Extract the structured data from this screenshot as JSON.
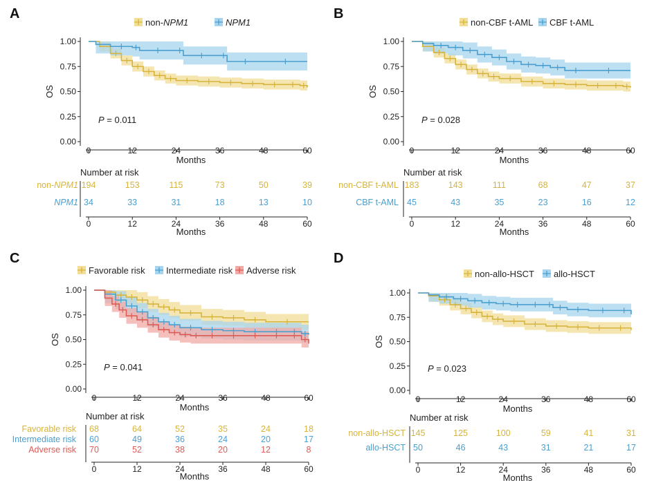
{
  "colors": {
    "gold": "#d6b43c",
    "blue": "#4a9fcf",
    "red": "#dd5b55",
    "gold_band": "#f2de97",
    "blue_band": "#a7d4ee",
    "red_band": "#f2aaa6"
  },
  "chart_data": [
    {
      "panel": "A",
      "type": "line",
      "ylabel": "OS",
      "xlabel": "Months",
      "ylim": [
        0,
        1
      ],
      "xlim": [
        0,
        60
      ],
      "yticks": [
        "0.00",
        "0.25",
        "0.50",
        "0.75",
        "1.00"
      ],
      "xticks": [
        "0",
        "12",
        "24",
        "36",
        "48",
        "60"
      ],
      "pvalue": "= 0.011",
      "pvalue_label": "P",
      "risk_title": "Number at risk",
      "series": [
        {
          "name": "non-NPM1",
          "italic_part": "NPM1",
          "prefix": "non-",
          "color": "gold",
          "x": [
            0,
            3,
            6,
            9,
            12,
            15,
            18,
            21,
            24,
            30,
            36,
            42,
            48,
            54,
            58,
            60
          ],
          "y": [
            1.0,
            0.95,
            0.88,
            0.81,
            0.75,
            0.7,
            0.66,
            0.63,
            0.61,
            0.6,
            0.59,
            0.58,
            0.57,
            0.57,
            0.56,
            0.54
          ],
          "band": 0.05,
          "risk": [
            "194",
            "153",
            "115",
            "73",
            "50",
            "39"
          ]
        },
        {
          "name": "NPM1",
          "italic_part": "NPM1",
          "prefix": "",
          "color": "blue",
          "x": [
            0,
            2,
            6,
            12,
            14,
            24,
            26,
            36,
            38,
            48,
            60
          ],
          "y": [
            1.0,
            0.97,
            0.95,
            0.94,
            0.91,
            0.91,
            0.86,
            0.86,
            0.8,
            0.8,
            0.8
          ],
          "band": 0.09,
          "risk": [
            "34",
            "33",
            "31",
            "18",
            "13",
            "10"
          ]
        }
      ]
    },
    {
      "panel": "B",
      "type": "line",
      "ylabel": "OS",
      "xlabel": "Months",
      "ylim": [
        0,
        1
      ],
      "xlim": [
        0,
        60
      ],
      "yticks": [
        "0.00",
        "0.25",
        "0.50",
        "0.75",
        "1.00"
      ],
      "xticks": [
        "0",
        "12",
        "24",
        "36",
        "48",
        "60"
      ],
      "pvalue": "= 0.028",
      "pvalue_label": "P",
      "risk_title": "Number at risk",
      "series": [
        {
          "name": "non-CBF t-AML",
          "color": "gold",
          "x": [
            0,
            3,
            6,
            9,
            12,
            15,
            18,
            21,
            24,
            30,
            36,
            42,
            48,
            54,
            58,
            60
          ],
          "y": [
            1.0,
            0.95,
            0.89,
            0.83,
            0.77,
            0.72,
            0.68,
            0.65,
            0.63,
            0.6,
            0.58,
            0.57,
            0.56,
            0.56,
            0.55,
            0.54
          ],
          "band": 0.05,
          "risk": [
            "183",
            "143",
            "111",
            "68",
            "47",
            "37"
          ]
        },
        {
          "name": "CBF t-AML",
          "color": "blue",
          "x": [
            0,
            3,
            6,
            10,
            14,
            18,
            22,
            26,
            30,
            34,
            38,
            42,
            48,
            60
          ],
          "y": [
            1.0,
            0.98,
            0.96,
            0.94,
            0.91,
            0.87,
            0.84,
            0.8,
            0.77,
            0.76,
            0.74,
            0.71,
            0.71,
            0.71
          ],
          "band": 0.08,
          "risk": [
            "45",
            "43",
            "35",
            "23",
            "16",
            "12"
          ]
        }
      ]
    },
    {
      "panel": "C",
      "type": "line",
      "ylabel": "OS",
      "xlabel": "Months",
      "ylim": [
        0,
        1
      ],
      "xlim": [
        0,
        60
      ],
      "yticks": [
        "0.00",
        "0.25",
        "0.50",
        "0.75",
        "1.00"
      ],
      "xticks": [
        "0",
        "12",
        "24",
        "36",
        "48",
        "60"
      ],
      "pvalue": "= 0.041",
      "pvalue_label": "P",
      "risk_title": "Number at risk",
      "series": [
        {
          "name": "Favorable risk",
          "color": "gold",
          "x": [
            0,
            3,
            6,
            9,
            12,
            15,
            18,
            21,
            24,
            30,
            36,
            42,
            48,
            60
          ],
          "y": [
            1.0,
            0.98,
            0.95,
            0.93,
            0.9,
            0.86,
            0.83,
            0.8,
            0.77,
            0.73,
            0.72,
            0.7,
            0.68,
            0.68
          ],
          "band": 0.08,
          "risk": [
            "68",
            "64",
            "52",
            "35",
            "24",
            "18"
          ]
        },
        {
          "name": "Intermediate risk",
          "color": "blue",
          "x": [
            0,
            3,
            6,
            9,
            12,
            15,
            18,
            21,
            24,
            30,
            36,
            42,
            48,
            54,
            58,
            60
          ],
          "y": [
            1.0,
            0.96,
            0.9,
            0.84,
            0.78,
            0.72,
            0.68,
            0.65,
            0.62,
            0.6,
            0.59,
            0.58,
            0.58,
            0.58,
            0.56,
            0.55
          ],
          "band": 0.09,
          "risk": [
            "60",
            "49",
            "36",
            "24",
            "20",
            "17"
          ]
        },
        {
          "name": "Adverse risk",
          "color": "red",
          "x": [
            0,
            3,
            5,
            7,
            9,
            12,
            15,
            18,
            21,
            24,
            27,
            30,
            36,
            42,
            48,
            54,
            58,
            60
          ],
          "y": [
            1.0,
            0.92,
            0.86,
            0.8,
            0.74,
            0.7,
            0.65,
            0.6,
            0.57,
            0.55,
            0.54,
            0.54,
            0.54,
            0.54,
            0.54,
            0.54,
            0.5,
            0.46
          ],
          "band": 0.08,
          "risk": [
            "70",
            "52",
            "38",
            "20",
            "12",
            "8"
          ]
        }
      ]
    },
    {
      "panel": "D",
      "type": "line",
      "ylabel": "OS",
      "xlabel": "Months",
      "ylim": [
        0,
        1
      ],
      "xlim": [
        0,
        60
      ],
      "yticks": [
        "0.00",
        "0.25",
        "0.50",
        "0.75",
        "1.00"
      ],
      "xticks": [
        "0",
        "12",
        "24",
        "36",
        "48",
        "60"
      ],
      "pvalue": "= 0.023",
      "pvalue_label": "P",
      "risk_title": "Number at risk",
      "series": [
        {
          "name": "non-allo-HSCT",
          "color": "gold",
          "x": [
            0,
            3,
            6,
            9,
            12,
            15,
            18,
            21,
            24,
            30,
            36,
            42,
            48,
            54,
            60
          ],
          "y": [
            1.0,
            0.97,
            0.93,
            0.88,
            0.84,
            0.8,
            0.76,
            0.73,
            0.71,
            0.68,
            0.66,
            0.65,
            0.64,
            0.64,
            0.62
          ],
          "band": 0.06,
          "risk": [
            "145",
            "125",
            "100",
            "59",
            "41",
            "31"
          ]
        },
        {
          "name": "allo-HSCT",
          "color": "blue",
          "x": [
            0,
            3,
            6,
            10,
            14,
            18,
            22,
            26,
            30,
            36,
            38,
            42,
            48,
            56,
            60
          ],
          "y": [
            1.0,
            0.98,
            0.96,
            0.94,
            0.92,
            0.9,
            0.89,
            0.88,
            0.88,
            0.88,
            0.85,
            0.83,
            0.82,
            0.82,
            0.78
          ],
          "band": 0.07,
          "risk": [
            "50",
            "46",
            "43",
            "31",
            "21",
            "17"
          ]
        }
      ]
    }
  ]
}
